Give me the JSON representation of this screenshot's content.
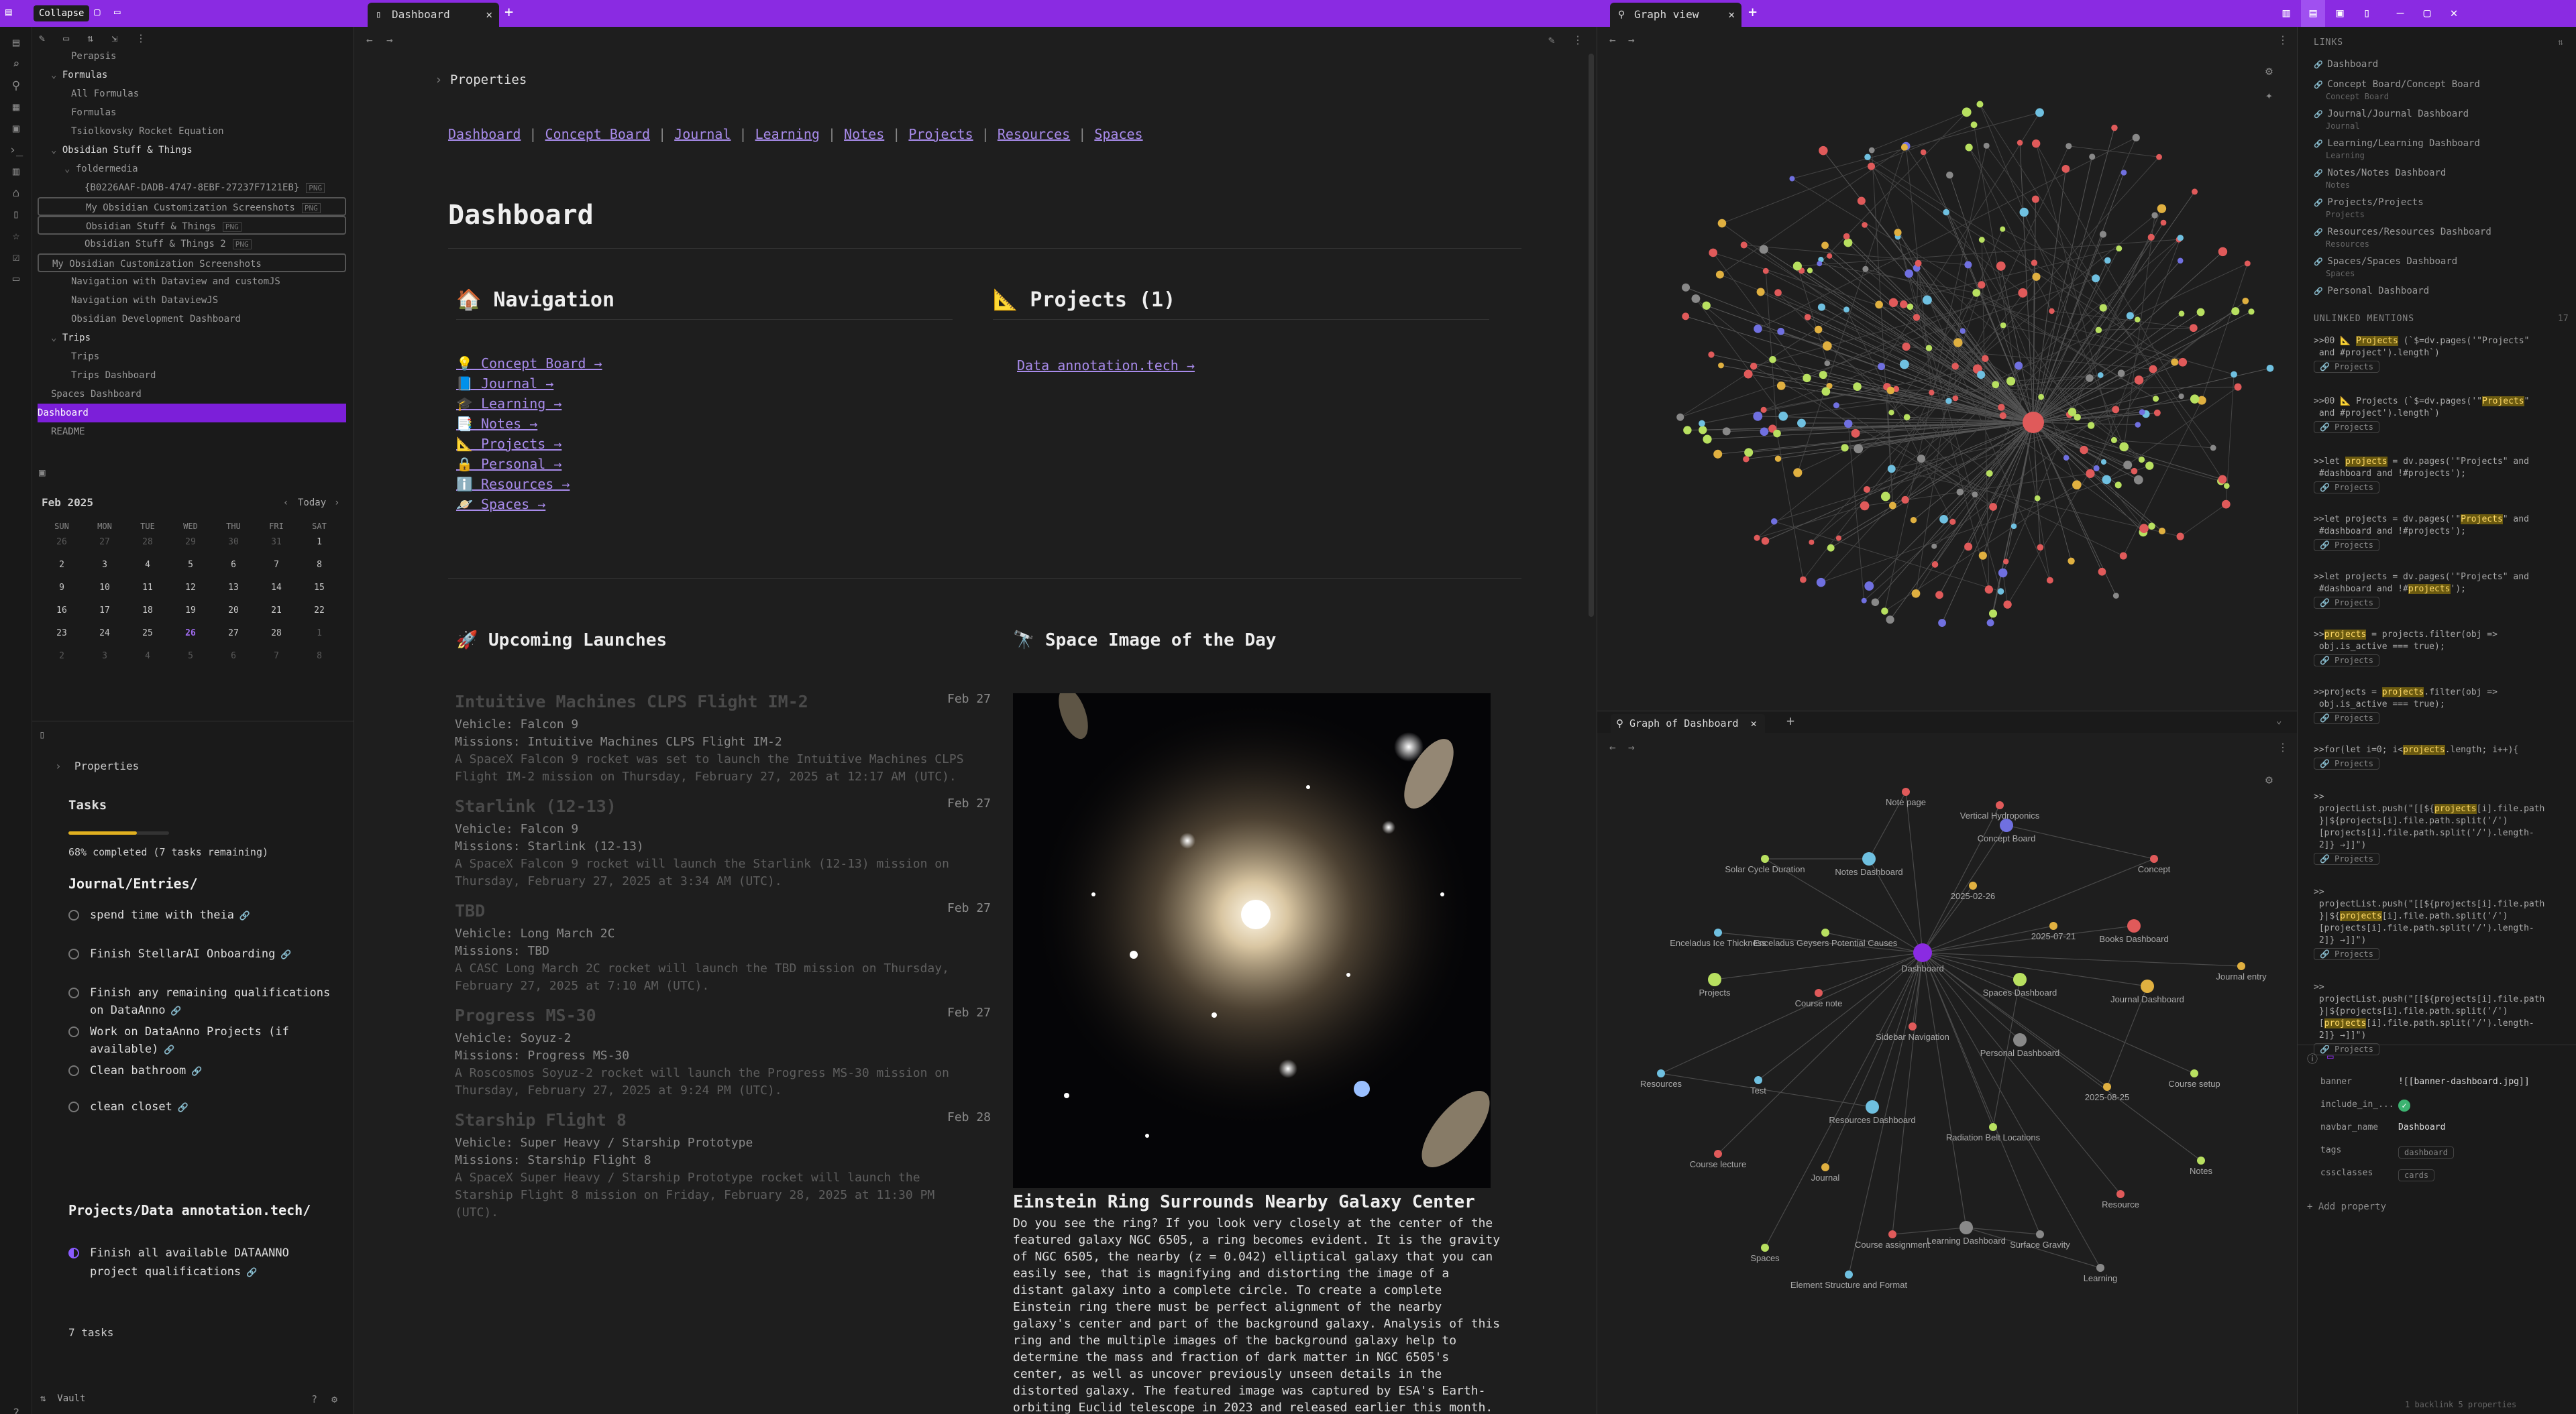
{
  "titlebar": {
    "collapse_label": "Collapse",
    "tab_dashboard": "Dashboard",
    "tab_graph": "Graph view"
  },
  "file_explorer": {
    "items": [
      {
        "label": "Perapsis"
      },
      {
        "label": "Formulas"
      },
      {
        "label": "All Formulas"
      },
      {
        "label": "Formulas"
      },
      {
        "label": "Tsiolkovsky Rocket Equation"
      },
      {
        "label": "Obsidian Stuff & Things"
      },
      {
        "label": "foldermedia"
      },
      {
        "label": "{B0226AAF-DADB-4747-8EBF-27237F7121EB}",
        "tag": "PNG"
      },
      {
        "label": "My Obsidian Customization Screenshots",
        "tag": "PNG"
      },
      {
        "label": "Obsidian Stuff & Things",
        "tag": "PNG"
      },
      {
        "label": "Obsidian Stuff & Things 2",
        "tag": "PNG"
      },
      {
        "label": "My Obsidian Customization Screenshots"
      },
      {
        "label": "Navigation with Dataview and customJS"
      },
      {
        "label": "Navigation with DataviewJS"
      },
      {
        "label": "Obsidian Development Dashboard"
      },
      {
        "label": "Trips"
      },
      {
        "label": "Trips"
      },
      {
        "label": "Trips Dashboard"
      },
      {
        "label": "Spaces Dashboard"
      },
      {
        "label": "Dashboard"
      },
      {
        "label": "README"
      }
    ]
  },
  "calendar": {
    "month": "Feb 2025",
    "today": "Today",
    "weekdays": [
      "SUN",
      "MON",
      "TUE",
      "WED",
      "THU",
      "FRI",
      "SAT"
    ],
    "weeks": [
      [
        "26",
        "27",
        "28",
        "29",
        "30",
        "31",
        "1"
      ],
      [
        "2",
        "3",
        "4",
        "5",
        "6",
        "7",
        "8"
      ],
      [
        "9",
        "10",
        "11",
        "12",
        "13",
        "14",
        "15"
      ],
      [
        "16",
        "17",
        "18",
        "19",
        "20",
        "21",
        "22"
      ],
      [
        "23",
        "24",
        "25",
        "26",
        "27",
        "28",
        "1"
      ],
      [
        "2",
        "3",
        "4",
        "5",
        "6",
        "7",
        "8"
      ]
    ]
  },
  "tasks_panel": {
    "properties": "Properties",
    "title": "Tasks",
    "progress_text": "68% completed (7 tasks remaining)",
    "progress": 0.68,
    "group1": "Journal/Entries/",
    "tasks1": [
      "spend time with theia",
      "Finish StellarAI Onboarding",
      "Finish any remaining qualifications on DataAnno",
      "Work on DataAnno Projects (if available)",
      "Clean bathroom",
      "clean closet"
    ],
    "group2": "Projects/Data annotation.tech/",
    "tasks2": [
      "Finish all available DATAANNO project qualifications"
    ],
    "count": "7 tasks",
    "vault": "Vault"
  },
  "note": {
    "properties": "Properties",
    "nav_links": [
      "Dashboard",
      "Concept Board",
      "Journal",
      "Learning",
      "Notes",
      "Projects",
      "Resources",
      "Spaces"
    ],
    "title": "Dashboard",
    "navigation_title": "🏠 Navigation",
    "navigation_links": [
      "💡 Concept Board →",
      "📘 Journal →",
      "🎓 Learning →",
      "📑 Notes →",
      "📐 Projects →",
      "🔒 Personal →",
      "ℹ️ Resources →",
      "🪐 Spaces →"
    ],
    "projects_title": "📐 Projects (1)",
    "projects_link": "Data annotation.tech →",
    "launches_title": "🚀 Upcoming Launches",
    "launches": [
      {
        "name": "Intuitive Machines CLPS Flight IM-2",
        "date": "Feb 27",
        "vehicle": "Vehicle: Falcon 9",
        "missions": "Missions: Intuitive Machines CLPS Flight IM-2",
        "desc": "A SpaceX Falcon 9 rocket was set to launch the Intuitive Machines CLPS Flight IM-2 mission on Thursday, February 27, 2025 at 12:17 AM (UTC)."
      },
      {
        "name": "Starlink (12-13)",
        "date": "Feb 27",
        "vehicle": "Vehicle: Falcon 9",
        "missions": "Missions: Starlink (12-13)",
        "desc": "A SpaceX Falcon 9 rocket will launch the Starlink (12-13) mission on Thursday, February 27, 2025 at 3:34 AM (UTC)."
      },
      {
        "name": "TBD",
        "date": "Feb 27",
        "vehicle": "Vehicle: Long March 2C",
        "missions": "Missions: TBD",
        "desc": "A CASC Long March 2C rocket will launch the TBD mission on Thursday, February 27, 2025 at 7:10 AM (UTC)."
      },
      {
        "name": "Progress MS-30",
        "date": "Feb 27",
        "vehicle": "Vehicle: Soyuz-2",
        "missions": "Missions: Progress MS-30",
        "desc": "A Roscosmos Soyuz-2 rocket will launch the Progress MS-30 mission on Thursday, February 27, 2025 at 9:24 PM (UTC)."
      },
      {
        "name": "Starship Flight 8",
        "date": "Feb 28",
        "vehicle": "Vehicle: Super Heavy / Starship Prototype",
        "missions": "Missions: Starship Flight 8",
        "desc": "A SpaceX Super Heavy / Starship Prototype rocket will launch the Starship Flight 8 mission on Friday, February 28, 2025 at 11:30 PM (UTC)."
      }
    ],
    "apod_title": "🔭 Space Image of the Day",
    "apod_caption": "Einstein Ring Surrounds Nearby Galaxy Center",
    "apod_text": "Do you see the ring? If you look very closely at the center of the featured galaxy NGC 6505, a ring becomes evident. It is the gravity of NGC 6505, the nearby (z = 0.042) elliptical galaxy that you can easily see, that is magnifying and distorting the image of a distant galaxy into a complete circle. To create a complete Einstein ring there must be perfect alignment of the nearby galaxy's center and part of the background galaxy. Analysis of this ring and the multiple images of the background galaxy help to determine the mass and fraction of dark matter in NGC 6505's center, as well as uncover previously unseen details in the distorted galaxy. The featured image was captured by ESA's Earth-orbiting Euclid telescope in 2023 and released earlier this month."
  },
  "graph_local": {
    "tab": "Graph of Dashboard",
    "nodes": [
      "Note page",
      "Vertical Hydroponics",
      "Concept Board",
      "Concept",
      "Solar Cycle Duration",
      "Notes Dashboard",
      "2025-02-26",
      "2025-07-21",
      "Books Dashboard",
      "Enceladus Ice Thickness",
      "Enceladus Geysers Potential Causes",
      "Dashboard",
      "Journal entry",
      "Projects",
      "Course note",
      "Spaces Dashboard",
      "Journal Dashboard",
      "Sidebar Navigation",
      "Personal Dashboard",
      "Resources",
      "Test",
      "Course setup",
      "2025-08-25",
      "Resources Dashboard",
      "Radiation Belt Locations",
      "Course lecture",
      "Journal",
      "Notes",
      "Resource",
      "Course assignment",
      "Learning Dashboard",
      "Surface Gravity",
      "Spaces",
      "Learning",
      "Element Structure and Format"
    ]
  },
  "right_sidebar": {
    "links_header": "LINKS",
    "links": [
      {
        "title": "Dashboard",
        "sub": ""
      },
      {
        "title": "Concept Board/Concept Board",
        "sub": "Concept Board"
      },
      {
        "title": "Journal/Journal Dashboard",
        "sub": "Journal"
      },
      {
        "title": "Learning/Learning Dashboard",
        "sub": "Learning"
      },
      {
        "title": "Notes/Notes Dashboard",
        "sub": "Notes"
      },
      {
        "title": "Projects/Projects",
        "sub": "Projects"
      },
      {
        "title": "Resources/Resources Dashboard",
        "sub": "Resources"
      },
      {
        "title": "Spaces/Spaces Dashboard",
        "sub": "Spaces"
      },
      {
        "title": "Personal Dashboard",
        "sub": ""
      }
    ],
    "unlinked_header": "UNLINKED MENTIONS",
    "unlinked_count": "17",
    "mention_btn": "Projects",
    "properties": [
      {
        "key": "banner",
        "value": "![[banner-dashboard.jpg]]"
      },
      {
        "key": "include_in_...",
        "value": "✓"
      },
      {
        "key": "navbar_name",
        "value": "Dashboard"
      },
      {
        "key": "tags",
        "value": "dashboard"
      },
      {
        "key": "cssclasses",
        "value": "cards"
      }
    ],
    "add_property": "+ Add property",
    "footer": "1 backlink  5 properties"
  },
  "colors": {
    "accent": "#8a2be2",
    "active": "#7c1fd9",
    "link": "#a88beb"
  }
}
